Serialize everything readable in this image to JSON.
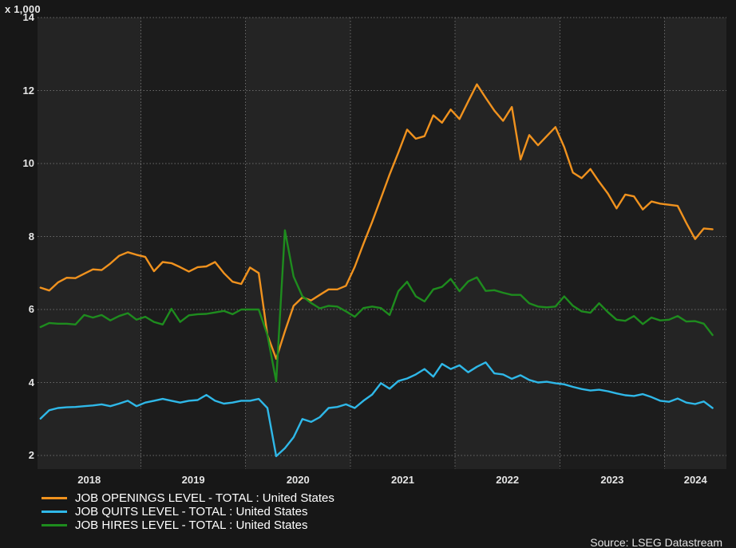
{
  "chart": {
    "y_axis_unit": "x 1,000",
    "source": "Source: LSEG Datastream",
    "y_ticks": [
      14,
      12,
      10,
      8,
      6,
      4,
      2
    ],
    "x_ticks": [
      "2018",
      "2019",
      "2020",
      "2021",
      "2022",
      "2023",
      "2024"
    ]
  },
  "chart_data": {
    "type": "line",
    "title": "",
    "xlabel": "",
    "ylabel": "x 1,000",
    "x_frequency": "monthly",
    "x_start": "2018-01",
    "x_end": "2024-06",
    "ylim": [
      2,
      14
    ],
    "grid": "dotted",
    "legend_position": "bottom-left",
    "background_bands": "alternating-years",
    "series": [
      {
        "name": "JOB OPENINGS LEVEL - TOTAL : United States",
        "color": "#f0921e",
        "values": [
          6.6,
          6.52,
          6.74,
          6.87,
          6.86,
          6.98,
          7.1,
          7.08,
          7.26,
          7.47,
          7.57,
          7.5,
          7.44,
          7.05,
          7.3,
          7.27,
          7.16,
          7.04,
          7.16,
          7.18,
          7.3,
          7.0,
          6.76,
          6.7,
          7.15,
          7.0,
          5.3,
          4.65,
          5.4,
          6.1,
          6.33,
          6.25,
          6.4,
          6.55,
          6.55,
          6.65,
          7.17,
          7.8,
          8.4,
          9.05,
          9.7,
          10.3,
          10.93,
          10.68,
          10.75,
          11.32,
          11.12,
          11.48,
          11.22,
          11.7,
          12.17,
          11.8,
          11.45,
          11.17,
          11.55,
          10.11,
          10.78,
          10.5,
          10.75,
          11.0,
          10.45,
          9.75,
          9.6,
          9.85,
          9.5,
          9.18,
          8.77,
          9.15,
          9.1,
          8.74,
          8.96,
          8.9,
          8.87,
          8.84,
          8.37,
          7.93,
          8.22,
          8.2
        ]
      },
      {
        "name": "JOB QUITS LEVEL - TOTAL : United States",
        "color": "#2fb8e8",
        "values": [
          3.01,
          3.24,
          3.3,
          3.32,
          3.33,
          3.35,
          3.37,
          3.4,
          3.35,
          3.42,
          3.5,
          3.35,
          3.45,
          3.5,
          3.55,
          3.5,
          3.45,
          3.5,
          3.52,
          3.66,
          3.5,
          3.42,
          3.45,
          3.5,
          3.5,
          3.55,
          3.3,
          1.98,
          2.2,
          2.5,
          3.0,
          2.92,
          3.05,
          3.3,
          3.33,
          3.4,
          3.3,
          3.5,
          3.67,
          3.98,
          3.83,
          4.04,
          4.11,
          4.22,
          4.37,
          4.16,
          4.51,
          4.37,
          4.47,
          4.28,
          4.43,
          4.55,
          4.25,
          4.22,
          4.1,
          4.2,
          4.07,
          4.0,
          4.02,
          3.98,
          3.95,
          3.88,
          3.82,
          3.78,
          3.8,
          3.76,
          3.7,
          3.65,
          3.63,
          3.68,
          3.6,
          3.5,
          3.47,
          3.56,
          3.45,
          3.41,
          3.48,
          3.3
        ]
      },
      {
        "name": "JOB HIRES LEVEL - TOTAL : United States",
        "color": "#1e8c1e",
        "values": [
          5.52,
          5.63,
          5.61,
          5.61,
          5.59,
          5.85,
          5.78,
          5.85,
          5.7,
          5.82,
          5.9,
          5.72,
          5.8,
          5.66,
          5.59,
          6.02,
          5.66,
          5.84,
          5.87,
          5.88,
          5.92,
          5.96,
          5.87,
          6.0,
          6.0,
          6.0,
          5.3,
          4.03,
          8.17,
          6.9,
          6.36,
          6.18,
          6.03,
          6.1,
          6.08,
          5.95,
          5.8,
          6.04,
          6.08,
          6.04,
          5.85,
          6.5,
          6.76,
          6.36,
          6.22,
          6.55,
          6.62,
          6.84,
          6.5,
          6.77,
          6.88,
          6.51,
          6.53,
          6.46,
          6.4,
          6.4,
          6.17,
          6.08,
          6.06,
          6.08,
          6.36,
          6.1,
          5.95,
          5.91,
          6.17,
          5.93,
          5.72,
          5.69,
          5.82,
          5.6,
          5.78,
          5.7,
          5.72,
          5.82,
          5.67,
          5.68,
          5.61,
          5.3
        ]
      }
    ]
  }
}
